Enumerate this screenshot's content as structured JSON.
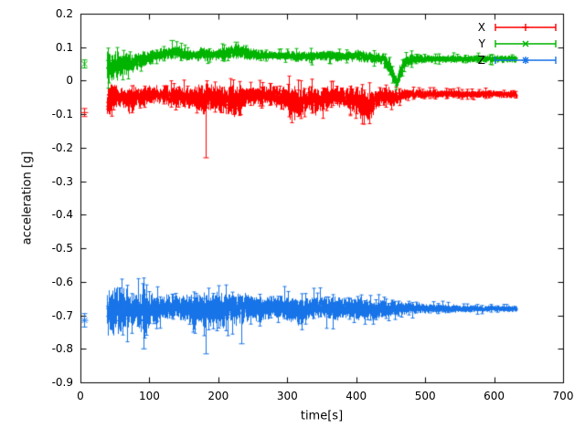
{
  "figure": {
    "background": "#ffffff",
    "border_color": "#000000",
    "text_color": "#000000"
  },
  "chart_data": {
    "type": "line",
    "subtype": "errorbars",
    "title": "",
    "xlabel": "time[s]",
    "ylabel": "acceleration [g]",
    "xlim": [
      0,
      700
    ],
    "ylim": [
      -0.9,
      0.2
    ],
    "grid": false,
    "x_ticks": [
      {
        "v": 0,
        "label": "0"
      },
      {
        "v": 100,
        "label": "100"
      },
      {
        "v": 200,
        "label": "200"
      },
      {
        "v": 300,
        "label": "300"
      },
      {
        "v": 400,
        "label": "400"
      },
      {
        "v": 500,
        "label": "500"
      },
      {
        "v": 600,
        "label": "600"
      },
      {
        "v": 700,
        "label": "700"
      }
    ],
    "y_ticks": [
      {
        "v": 0.2,
        "label": "0.2"
      },
      {
        "v": 0.1,
        "label": "0.1"
      },
      {
        "v": 0,
        "label": "0"
      },
      {
        "v": -0.1,
        "label": "-0.1"
      },
      {
        "v": -0.2,
        "label": "-0.2"
      },
      {
        "v": -0.3,
        "label": "-0.3"
      },
      {
        "v": -0.4,
        "label": "-0.4"
      },
      {
        "v": -0.5,
        "label": "-0.5"
      },
      {
        "v": -0.6,
        "label": "-0.6"
      },
      {
        "v": -0.7,
        "label": "-0.7"
      },
      {
        "v": -0.8,
        "label": "-0.8"
      },
      {
        "v": -0.9,
        "label": "-0.9"
      }
    ],
    "legend": {
      "position": "top-right",
      "entries": [
        "X",
        "Y",
        "Z"
      ]
    },
    "series": [
      {
        "name": "X",
        "color": "#ff0000",
        "marker": "plus",
        "style": "errorbars",
        "baseline": -0.05,
        "first_point": {
          "t": 5,
          "y": -0.095,
          "err": 0.012
        },
        "range": [
          38,
          632
        ],
        "envelope": [
          [
            38,
            -0.07,
            0.055
          ],
          [
            44,
            -0.05,
            0.05
          ],
          [
            52,
            -0.045,
            0.035
          ],
          [
            62,
            -0.05,
            0.03
          ],
          [
            72,
            -0.06,
            0.045
          ],
          [
            82,
            -0.05,
            0.035
          ],
          [
            95,
            -0.045,
            0.03
          ],
          [
            110,
            -0.04,
            0.025
          ],
          [
            125,
            -0.045,
            0.03
          ],
          [
            140,
            -0.05,
            0.035
          ],
          [
            155,
            -0.05,
            0.03
          ],
          [
            168,
            -0.055,
            0.04
          ],
          [
            178,
            -0.06,
            0.05
          ],
          [
            188,
            -0.05,
            0.04
          ],
          [
            200,
            -0.055,
            0.04
          ],
          [
            212,
            -0.06,
            0.045
          ],
          [
            224,
            -0.065,
            0.05
          ],
          [
            238,
            -0.05,
            0.035
          ],
          [
            255,
            -0.045,
            0.03
          ],
          [
            272,
            -0.04,
            0.028
          ],
          [
            290,
            -0.05,
            0.035
          ],
          [
            305,
            -0.065,
            0.05
          ],
          [
            318,
            -0.07,
            0.045
          ],
          [
            330,
            -0.05,
            0.035
          ],
          [
            342,
            -0.06,
            0.045
          ],
          [
            355,
            -0.05,
            0.035
          ],
          [
            368,
            -0.045,
            0.03
          ],
          [
            382,
            -0.05,
            0.035
          ],
          [
            395,
            -0.055,
            0.04
          ],
          [
            408,
            -0.07,
            0.05
          ],
          [
            418,
            -0.08,
            0.05
          ],
          [
            428,
            -0.055,
            0.035
          ],
          [
            440,
            -0.045,
            0.025
          ],
          [
            452,
            -0.05,
            0.03
          ],
          [
            465,
            -0.045,
            0.02
          ],
          [
            480,
            -0.04,
            0.015
          ],
          [
            510,
            -0.04,
            0.013
          ],
          [
            560,
            -0.04,
            0.012
          ],
          [
            632,
            -0.04,
            0.012
          ]
        ],
        "spikes": [
          [
            181,
            -0.23
          ]
        ]
      },
      {
        "name": "Y",
        "color": "#00b400",
        "marker": "cross",
        "style": "errorbars",
        "baseline": 0.07,
        "first_point": {
          "t": 5,
          "y": 0.05,
          "err": 0.012
        },
        "range": [
          38,
          632
        ],
        "envelope": [
          [
            38,
            0.05,
            0.05
          ],
          [
            45,
            0.04,
            0.045
          ],
          [
            55,
            0.045,
            0.04
          ],
          [
            65,
            0.05,
            0.035
          ],
          [
            78,
            0.055,
            0.03
          ],
          [
            92,
            0.065,
            0.025
          ],
          [
            108,
            0.075,
            0.02
          ],
          [
            125,
            0.08,
            0.02
          ],
          [
            135,
            0.085,
            0.022
          ],
          [
            150,
            0.08,
            0.02
          ],
          [
            165,
            0.075,
            0.018
          ],
          [
            180,
            0.08,
            0.022
          ],
          [
            195,
            0.075,
            0.018
          ],
          [
            210,
            0.08,
            0.02
          ],
          [
            225,
            0.088,
            0.024
          ],
          [
            235,
            0.085,
            0.022
          ],
          [
            250,
            0.078,
            0.018
          ],
          [
            270,
            0.075,
            0.015
          ],
          [
            300,
            0.075,
            0.015
          ],
          [
            325,
            0.07,
            0.018
          ],
          [
            350,
            0.075,
            0.015
          ],
          [
            375,
            0.072,
            0.015
          ],
          [
            400,
            0.075,
            0.018
          ],
          [
            420,
            0.07,
            0.018
          ],
          [
            438,
            0.065,
            0.018
          ],
          [
            448,
            0.045,
            0.025
          ],
          [
            454,
            0.01,
            0.025
          ],
          [
            458,
            -0.01,
            0.018
          ],
          [
            463,
            0.02,
            0.025
          ],
          [
            470,
            0.055,
            0.02
          ],
          [
            480,
            0.065,
            0.015
          ],
          [
            520,
            0.065,
            0.012
          ],
          [
            570,
            0.065,
            0.012
          ],
          [
            632,
            0.065,
            0.012
          ]
        ],
        "spikes": [
          [
            133,
            0.12
          ],
          [
            226,
            0.115
          ]
        ]
      },
      {
        "name": "Z",
        "color": "#1874e8",
        "marker": "asterisk",
        "style": "errorbars",
        "baseline": -0.68,
        "first_point": {
          "t": 5,
          "y": -0.715,
          "err": 0.02
        },
        "range": [
          38,
          632
        ],
        "envelope": [
          [
            38,
            -0.69,
            0.065
          ],
          [
            48,
            -0.69,
            0.075
          ],
          [
            58,
            -0.685,
            0.07
          ],
          [
            68,
            -0.685,
            0.065
          ],
          [
            80,
            -0.68,
            0.055
          ],
          [
            92,
            -0.69,
            0.07
          ],
          [
            104,
            -0.68,
            0.045
          ],
          [
            118,
            -0.68,
            0.04
          ],
          [
            135,
            -0.675,
            0.035
          ],
          [
            152,
            -0.68,
            0.04
          ],
          [
            166,
            -0.685,
            0.05
          ],
          [
            180,
            -0.69,
            0.055
          ],
          [
            195,
            -0.68,
            0.05
          ],
          [
            212,
            -0.685,
            0.055
          ],
          [
            228,
            -0.68,
            0.05
          ],
          [
            245,
            -0.675,
            0.045
          ],
          [
            262,
            -0.68,
            0.04
          ],
          [
            280,
            -0.675,
            0.035
          ],
          [
            298,
            -0.68,
            0.04
          ],
          [
            315,
            -0.685,
            0.045
          ],
          [
            332,
            -0.68,
            0.035
          ],
          [
            350,
            -0.675,
            0.035
          ],
          [
            368,
            -0.68,
            0.04
          ],
          [
            386,
            -0.675,
            0.03
          ],
          [
            404,
            -0.68,
            0.035
          ],
          [
            422,
            -0.685,
            0.03
          ],
          [
            440,
            -0.68,
            0.025
          ],
          [
            460,
            -0.68,
            0.022
          ],
          [
            485,
            -0.68,
            0.018
          ],
          [
            520,
            -0.68,
            0.014
          ],
          [
            560,
            -0.68,
            0.012
          ],
          [
            600,
            -0.68,
            0.01
          ],
          [
            632,
            -0.68,
            0.01
          ]
        ],
        "spikes": [
          [
            92,
            -0.8
          ],
          [
            181,
            -0.815
          ],
          [
            233,
            -0.785
          ]
        ]
      }
    ]
  }
}
